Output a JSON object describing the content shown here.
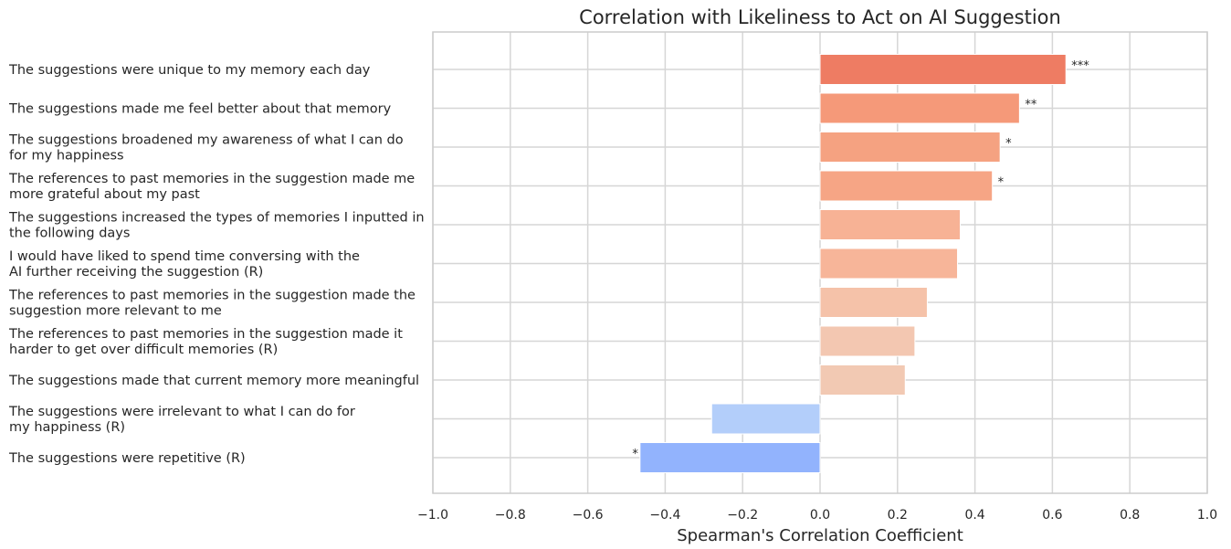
{
  "chart_data": {
    "type": "bar",
    "orientation": "horizontal",
    "title": "Correlation with Likeliness to Act on AI Suggestion",
    "xlabel": "Spearman's Correlation Coefficient",
    "ylabel": "",
    "xlim": [
      -1.0,
      1.0
    ],
    "xticks": [
      -1.0,
      -0.8,
      -0.6,
      -0.4,
      -0.2,
      0.0,
      0.2,
      0.4,
      0.6,
      0.8,
      1.0
    ],
    "xtick_labels": [
      "−1.0",
      "−0.8",
      "−0.6",
      "−0.4",
      "−0.2",
      "0.0",
      "0.2",
      "0.4",
      "0.6",
      "0.8",
      "1.0"
    ],
    "grid": true,
    "categories": [
      [
        "The suggestions were unique to my memory each day"
      ],
      [
        "The suggestions made me feel better about that memory"
      ],
      [
        "The suggestions broadened my awareness of what I can do",
        "for my happiness"
      ],
      [
        "The references to past memories in the suggestion made me",
        "more grateful about my past"
      ],
      [
        "The suggestions increased the types of memories I inputted in",
        "the following days"
      ],
      [
        "I would have liked to spend time conversing with the",
        "AI further receiving the suggestion (R)"
      ],
      [
        "The references to past memories in the suggestion made the",
        "suggestion more relevant to me"
      ],
      [
        "The references to past memories in the suggestion made it",
        "harder to get over difficult memories (R)"
      ],
      [
        "The suggestions made that current memory more meaningful"
      ],
      [
        "The suggestions were irrelevant to what I can do for",
        "my happiness (R)"
      ],
      [
        "The suggestions were repetitive (R)"
      ]
    ],
    "values": [
      0.635,
      0.515,
      0.465,
      0.445,
      0.362,
      0.355,
      0.277,
      0.245,
      0.22,
      -0.28,
      -0.465
    ],
    "significance": [
      "***",
      "**",
      "*",
      "*",
      "",
      "",
      "",
      "",
      "",
      "",
      "*"
    ],
    "colors": [
      "#ee7c63",
      "#f59979",
      "#f5a281",
      "#f6a585",
      "#f7b295",
      "#f7b599",
      "#f5c2a9",
      "#f3c7b1",
      "#f2c9b3",
      "#b3cefa",
      "#92b3fd"
    ]
  }
}
